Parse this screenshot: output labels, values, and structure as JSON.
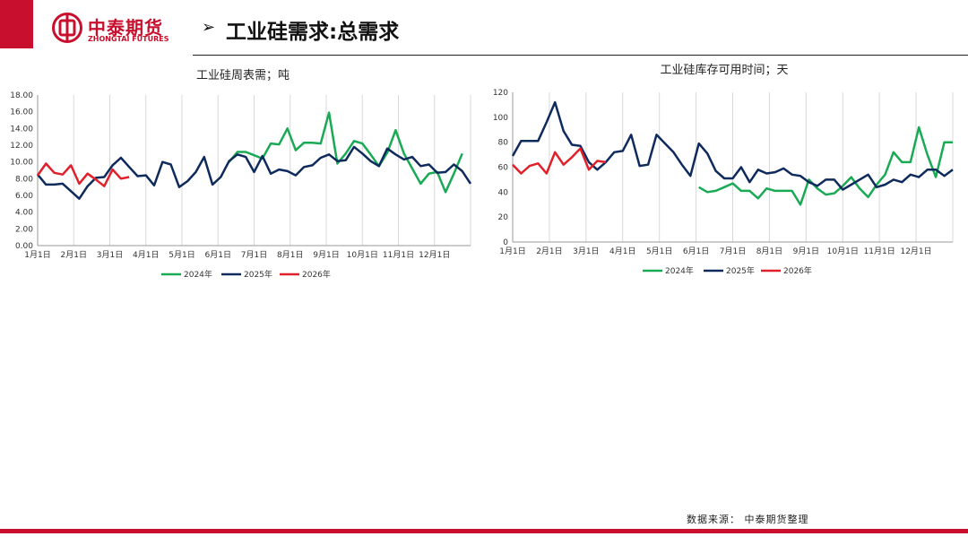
{
  "header": {
    "logo_cn": "中泰期货",
    "logo_en": "ZHONGTAI FUTURES",
    "title": "工业硅需求:总需求"
  },
  "colors": {
    "brand": "#c8102e",
    "series_2024": "#1aaa55",
    "series_2025": "#0f2a5c",
    "series_2026": "#e0202a"
  },
  "icons": {
    "title_arrow": "➢",
    "logo": "zhongtai-logo-icon"
  },
  "chart_data": [
    {
      "type": "line",
      "title": "工业硅周表需；吨",
      "xlabel": "",
      "ylabel": "",
      "x_ticks": [
        "1月1日",
        "2月1日",
        "3月1日",
        "4月1日",
        "5月1日",
        "6月1日",
        "7月1日",
        "8月1日",
        "9月1日",
        "10月1日",
        "11月1日",
        "12月1日"
      ],
      "x_range": [
        1,
        53
      ],
      "y_ticks": [
        "0.00",
        "2.00",
        "4.00",
        "6.00",
        "8.00",
        "10.00",
        "12.00",
        "14.00",
        "16.00",
        "18.00"
      ],
      "ylim": [
        0,
        18
      ],
      "grid": "vertical",
      "legend": "bottom",
      "series": [
        {
          "name": "2024年",
          "color": "#1aaa55",
          "x": [
            24,
            25,
            26,
            27,
            28,
            29,
            30,
            31,
            32,
            33,
            34,
            35,
            36,
            37,
            38,
            39,
            40,
            41,
            42,
            43,
            44,
            45,
            46,
            47,
            48,
            49,
            50,
            51,
            52
          ],
          "values": [
            10.0,
            11.2,
            11.2,
            10.8,
            10.4,
            12.2,
            12.1,
            14.0,
            11.4,
            12.3,
            12.3,
            12.2,
            15.9,
            9.8,
            11.0,
            12.5,
            12.2,
            10.9,
            9.5,
            11.1,
            13.8,
            11.0,
            9.2,
            7.4,
            8.6,
            8.8,
            6.4,
            8.6,
            11.0
          ]
        },
        {
          "name": "2025年",
          "color": "#0f2a5c",
          "x": [
            1,
            2,
            3,
            4,
            5,
            6,
            7,
            8,
            9,
            10,
            11,
            12,
            13,
            14,
            15,
            16,
            17,
            18,
            19,
            20,
            21,
            22,
            23,
            24,
            25,
            26,
            27,
            28,
            29,
            30,
            31,
            32,
            33,
            34,
            35,
            36,
            37,
            38,
            39,
            40,
            41,
            42,
            43,
            44,
            45,
            46,
            47,
            48,
            49,
            50,
            51,
            52,
            53
          ],
          "values": [
            8.5,
            7.3,
            7.3,
            7.4,
            6.5,
            5.6,
            7.1,
            8.1,
            8.2,
            9.6,
            10.5,
            9.4,
            8.3,
            8.4,
            7.2,
            10.0,
            9.7,
            7.0,
            7.7,
            8.8,
            10.6,
            7.3,
            8.2,
            10.1,
            10.9,
            10.6,
            8.8,
            10.7,
            8.6,
            9.1,
            8.9,
            8.4,
            9.4,
            9.6,
            10.5,
            10.9,
            10.1,
            10.2,
            11.8,
            11.0,
            10.1,
            9.5,
            11.6,
            10.9,
            10.3,
            10.6,
            9.5,
            9.7,
            8.7,
            8.8,
            9.7,
            8.9,
            7.4
          ]
        },
        {
          "name": "2026年",
          "color": "#e0202a",
          "x": [
            1,
            2,
            3,
            4,
            5,
            6,
            7,
            8,
            9,
            10,
            11,
            12
          ],
          "values": [
            8.4,
            9.8,
            8.7,
            8.5,
            9.6,
            7.4,
            8.6,
            7.9,
            7.1,
            9.1,
            8.0,
            8.2
          ]
        }
      ]
    },
    {
      "type": "line",
      "title": "工业硅库存可用时间；天",
      "xlabel": "",
      "ylabel": "",
      "x_ticks": [
        "1月1日",
        "2月1日",
        "3月1日",
        "4月1日",
        "5月1日",
        "6月1日",
        "7月1日",
        "8月1日",
        "9月1日",
        "10月1日",
        "11月1日",
        "12月1日"
      ],
      "x_range": [
        1,
        53
      ],
      "y_ticks": [
        "0",
        "20",
        "40",
        "60",
        "80",
        "100",
        "120"
      ],
      "ylim": [
        0,
        120
      ],
      "grid": "vertical",
      "legend": "bottom",
      "series": [
        {
          "name": "2024年",
          "color": "#1aaa55",
          "x": [
            23,
            24,
            25,
            26,
            27,
            28,
            29,
            30,
            31,
            32,
            33,
            34,
            35,
            36,
            37,
            38,
            39,
            40,
            41,
            42,
            43,
            44,
            45,
            46,
            47,
            48,
            49,
            50,
            51,
            52,
            53
          ],
          "values": [
            44,
            40,
            41,
            44,
            47,
            41,
            41,
            35,
            43,
            41,
            41,
            41,
            30,
            50,
            43,
            38,
            39,
            45,
            52,
            43,
            36,
            46,
            54,
            72,
            64,
            64,
            92,
            70,
            52,
            80,
            80
          ]
        },
        {
          "name": "2025年",
          "color": "#0f2a5c",
          "x": [
            1,
            2,
            3,
            4,
            5,
            6,
            7,
            8,
            9,
            10,
            11,
            12,
            13,
            14,
            15,
            16,
            17,
            18,
            19,
            20,
            21,
            22,
            23,
            24,
            25,
            26,
            27,
            28,
            29,
            30,
            31,
            32,
            33,
            34,
            35,
            36,
            37,
            38,
            39,
            40,
            41,
            42,
            43,
            44,
            45,
            46,
            47,
            48,
            49,
            50,
            51,
            52,
            53
          ],
          "values": [
            69,
            81,
            81,
            81,
            96,
            112,
            89,
            78,
            77,
            64,
            58,
            64,
            72,
            73,
            86,
            61,
            62,
            86,
            79,
            72,
            62,
            53,
            79,
            71,
            57,
            51,
            51,
            60,
            48,
            58,
            55,
            56,
            59,
            54,
            53,
            48,
            45,
            50,
            50,
            42,
            46,
            50,
            54,
            44,
            46,
            50,
            48,
            54,
            52,
            58,
            58,
            53,
            58
          ]
        },
        {
          "name": "2026年",
          "color": "#e0202a",
          "x": [
            1,
            2,
            3,
            4,
            5,
            6,
            7,
            8,
            9,
            10,
            11,
            12
          ],
          "values": [
            62,
            55,
            61,
            63,
            55,
            72,
            62,
            68,
            75,
            58,
            65,
            64
          ]
        }
      ]
    }
  ],
  "footer": {
    "source": "数据来源：  中泰期货整理"
  }
}
